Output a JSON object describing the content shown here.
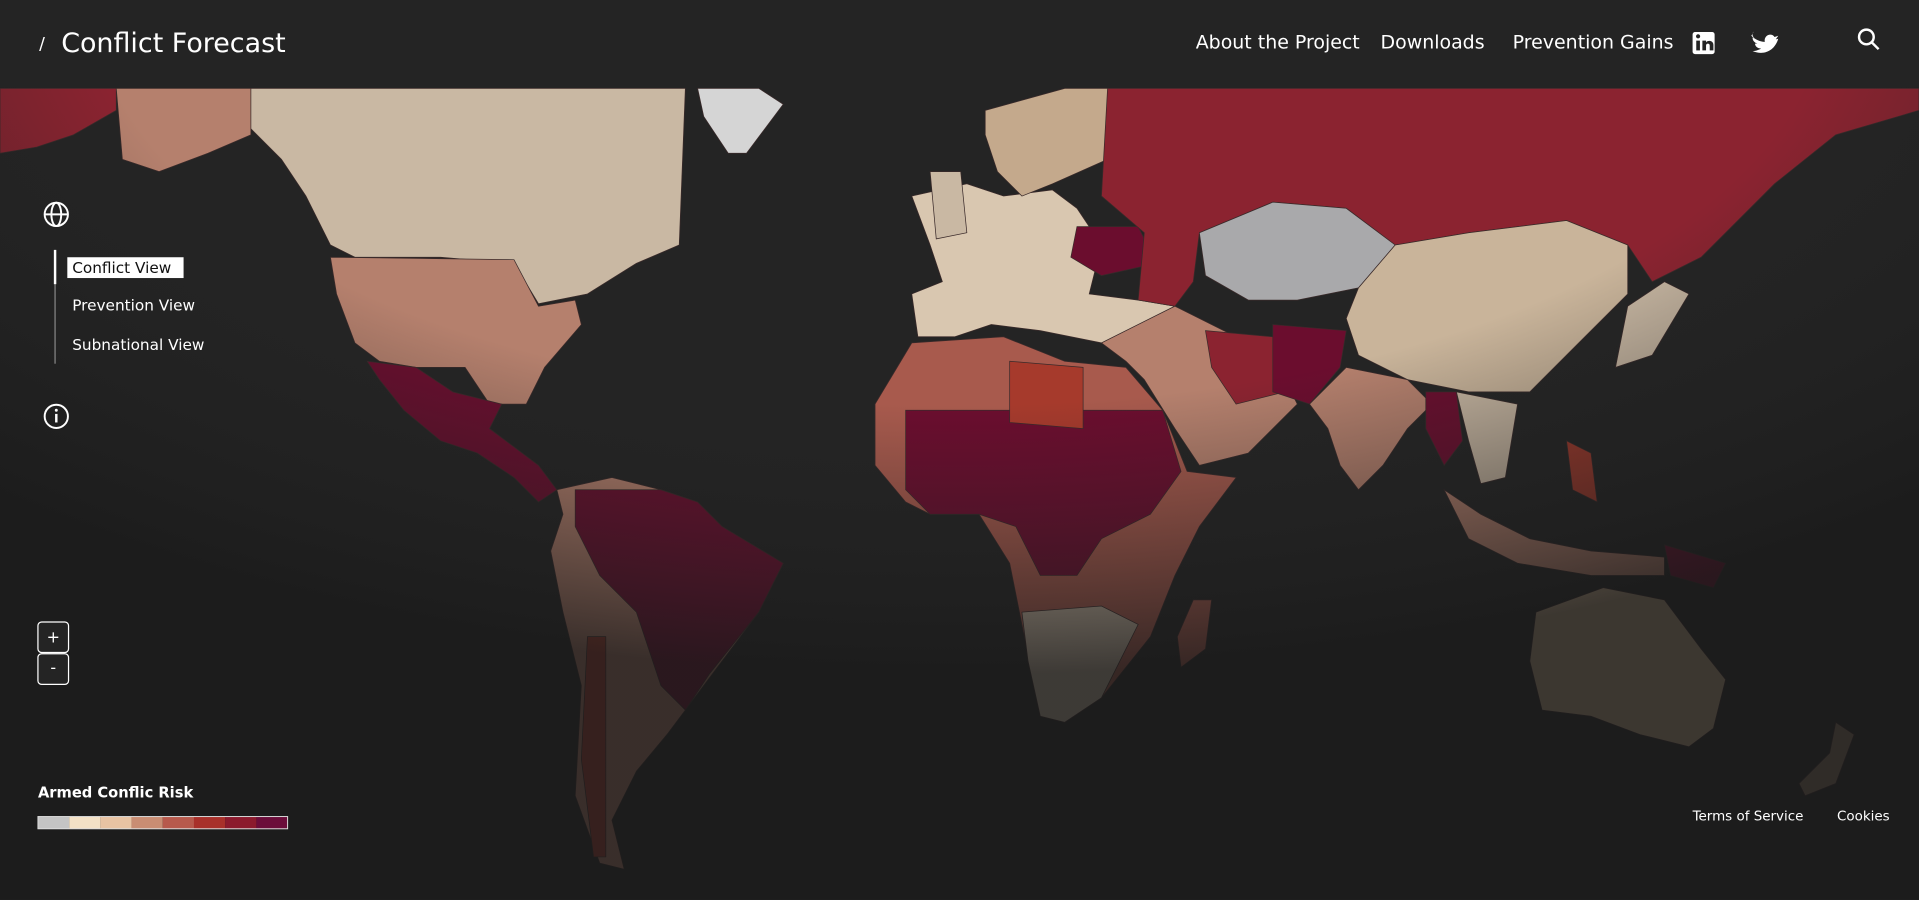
{
  "header": {
    "title": "Conflict Forecast",
    "nav": [
      "About the Project",
      "Downloads",
      "Prevention Gains"
    ]
  },
  "views": [
    "Conflict View",
    "Prevention View",
    "Subnational View"
  ],
  "zoom": [
    "+",
    "-"
  ],
  "legend": {
    "title": "Armed Conflic Risk",
    "colors": [
      "#c4c4c4",
      "#f3e1c6",
      "#e8c3a3",
      "#c98d73",
      "#b7594c",
      "#a8302a",
      "#8b1a2d",
      "#6b0d3a"
    ]
  },
  "footer": [
    "Terms of Service",
    "Cookies"
  ]
}
